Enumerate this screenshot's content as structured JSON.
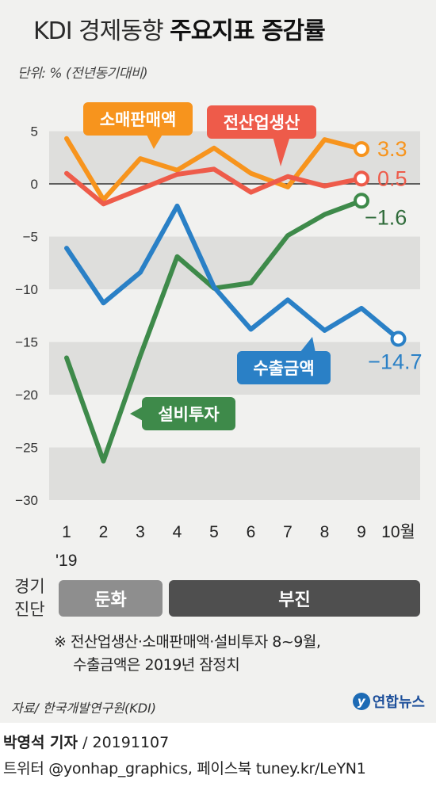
{
  "header": {
    "title_light": "KDI 경제동향",
    "title_bold": "주요지표 증감률",
    "unit": "단위: % (전년동기대비)"
  },
  "chart_data": {
    "type": "line",
    "x_labels": [
      "1",
      "2",
      "3",
      "4",
      "5",
      "6",
      "7",
      "8",
      "9",
      "10월"
    ],
    "x_sublabel": "'19",
    "y_ticks": [
      5,
      0,
      -5,
      -10,
      -15,
      -20,
      -25,
      -30
    ],
    "ylim": [
      -30,
      5
    ],
    "grid": true,
    "series": [
      {
        "name": "소매판매액",
        "color": "#f7941d",
        "x": [
          1,
          2,
          3,
          4,
          5,
          6,
          7,
          8,
          9
        ],
        "values": [
          4.3,
          -1.5,
          2.4,
          1.3,
          3.4,
          1.0,
          -0.3,
          4.2,
          3.3
        ],
        "end_label": "3.3"
      },
      {
        "name": "전산업생산",
        "color": "#ee5b4a",
        "x": [
          1,
          2,
          3,
          4,
          5,
          6,
          7,
          8,
          9
        ],
        "values": [
          1.0,
          -1.9,
          -0.5,
          0.9,
          1.4,
          -0.8,
          0.7,
          -0.2,
          0.5
        ],
        "end_label": "0.5"
      },
      {
        "name": "설비투자",
        "color": "#3e8a4a",
        "x": [
          1,
          2,
          3,
          4,
          5,
          6,
          7,
          8,
          9
        ],
        "values": [
          -16.5,
          -26.3,
          -16.3,
          -6.9,
          -9.9,
          -9.4,
          -4.9,
          -2.9,
          -1.6
        ],
        "end_label": "−1.6"
      },
      {
        "name": "수출금액",
        "color": "#2a80c6",
        "x": [
          1,
          2,
          3,
          4,
          5,
          6,
          7,
          8,
          9,
          10
        ],
        "values": [
          -6.1,
          -11.3,
          -8.4,
          -2.1,
          -9.8,
          -13.8,
          -11.0,
          -13.9,
          -11.8,
          -14.7
        ],
        "end_label": "−14.7"
      }
    ]
  },
  "diagnosis": {
    "label_line1": "경기",
    "label_line2": "진단",
    "phases": [
      {
        "name": "둔화",
        "color": "#8e8e8e"
      },
      {
        "name": "부진",
        "color": "#4f4f4f"
      }
    ]
  },
  "note": {
    "line1": "※ 전산업생산·소매판매액·설비투자 8~9월,",
    "line2": "수출금액은 2019년 잠정치"
  },
  "footer": {
    "source": "자료/ 한국개발연구원(KDI)",
    "logo_mark": "y",
    "logo_text": "연합뉴스",
    "reporter": "박영석 기자",
    "date": "/ 20191107",
    "social": "트위터 @yonhap_graphics, 페이스북 tuney.kr/LeYN1"
  }
}
